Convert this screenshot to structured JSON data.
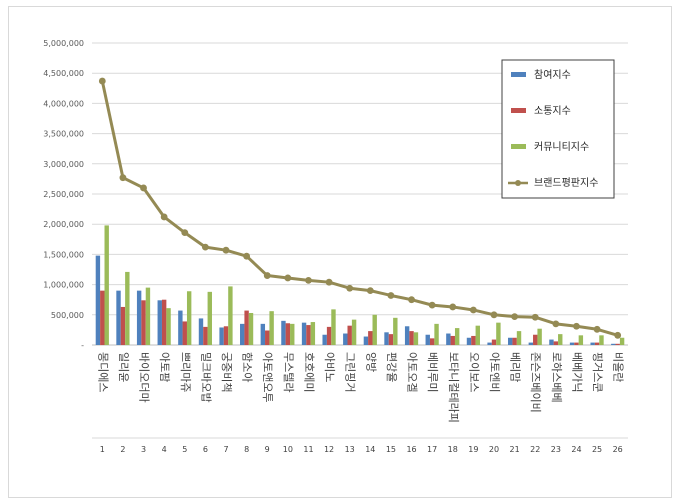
{
  "chart_data": {
    "type": "bar",
    "title": "",
    "xlabel": "",
    "ylabel": "",
    "ylim": [
      0,
      5000000
    ],
    "yticks": [
      0,
      500000,
      1000000,
      1500000,
      2000000,
      2500000,
      3000000,
      3500000,
      4000000,
      4500000,
      5000000
    ],
    "ytick_labels": [
      "-",
      "500,000",
      "1,000,000",
      "1,500,000",
      "2,000,000",
      "2,500,000",
      "3,000,000",
      "3,500,000",
      "4,000,000",
      "4,500,000",
      "5,000,000"
    ],
    "grid": true,
    "legend_position": "top-right",
    "ranks": [
      "1",
      "2",
      "3",
      "4",
      "5",
      "6",
      "7",
      "8",
      "9",
      "10",
      "11",
      "12",
      "13",
      "14",
      "15",
      "16",
      "17",
      "18",
      "19",
      "20",
      "21",
      "22",
      "23",
      "24",
      "25",
      "26"
    ],
    "categories": [
      "몽디에스",
      "일리윤",
      "바이오더마",
      "아토팜",
      "쁘리마쥬",
      "밀크바오밥",
      "궁중비책",
      "함소아",
      "아토앤오투",
      "무스텔라",
      "호호에미",
      "아비노",
      "그린핑거",
      "양방",
      "편강율",
      "아토오겔",
      "베비루미",
      "보타니컬테라피",
      "오이보스",
      "아토엔비",
      "베리맘",
      "존슨즈베이비",
      "로하스베베",
      "베베가닉",
      "핑거스쿤",
      "비올란"
    ],
    "series": [
      {
        "name": "참여지수",
        "type": "bar",
        "color": "#4f81bd",
        "values": [
          1480000,
          900000,
          900000,
          740000,
          570000,
          440000,
          290000,
          350000,
          350000,
          400000,
          370000,
          170000,
          190000,
          140000,
          210000,
          310000,
          170000,
          190000,
          120000,
          40000,
          120000,
          40000,
          90000,
          40000,
          40000,
          20000
        ]
      },
      {
        "name": "소통지수",
        "type": "bar",
        "color": "#c0504d",
        "values": [
          900000,
          630000,
          740000,
          750000,
          390000,
          300000,
          310000,
          570000,
          240000,
          360000,
          330000,
          300000,
          320000,
          230000,
          180000,
          230000,
          110000,
          150000,
          150000,
          90000,
          120000,
          170000,
          60000,
          40000,
          40000,
          20000
        ]
      },
      {
        "name": "커뮤니티지수",
        "type": "bar",
        "color": "#9bbb59",
        "values": [
          1980000,
          1210000,
          950000,
          610000,
          890000,
          880000,
          970000,
          530000,
          560000,
          350000,
          380000,
          590000,
          420000,
          500000,
          450000,
          210000,
          350000,
          280000,
          320000,
          370000,
          230000,
          270000,
          180000,
          160000,
          160000,
          120000
        ]
      },
      {
        "name": "브랜드평판지수",
        "type": "line",
        "color": "#948a54",
        "values": [
          4370000,
          2770000,
          2600000,
          2120000,
          1860000,
          1620000,
          1570000,
          1470000,
          1150000,
          1110000,
          1070000,
          1040000,
          940000,
          900000,
          820000,
          750000,
          660000,
          630000,
          580000,
          500000,
          470000,
          460000,
          350000,
          310000,
          260000,
          160000
        ]
      }
    ]
  }
}
